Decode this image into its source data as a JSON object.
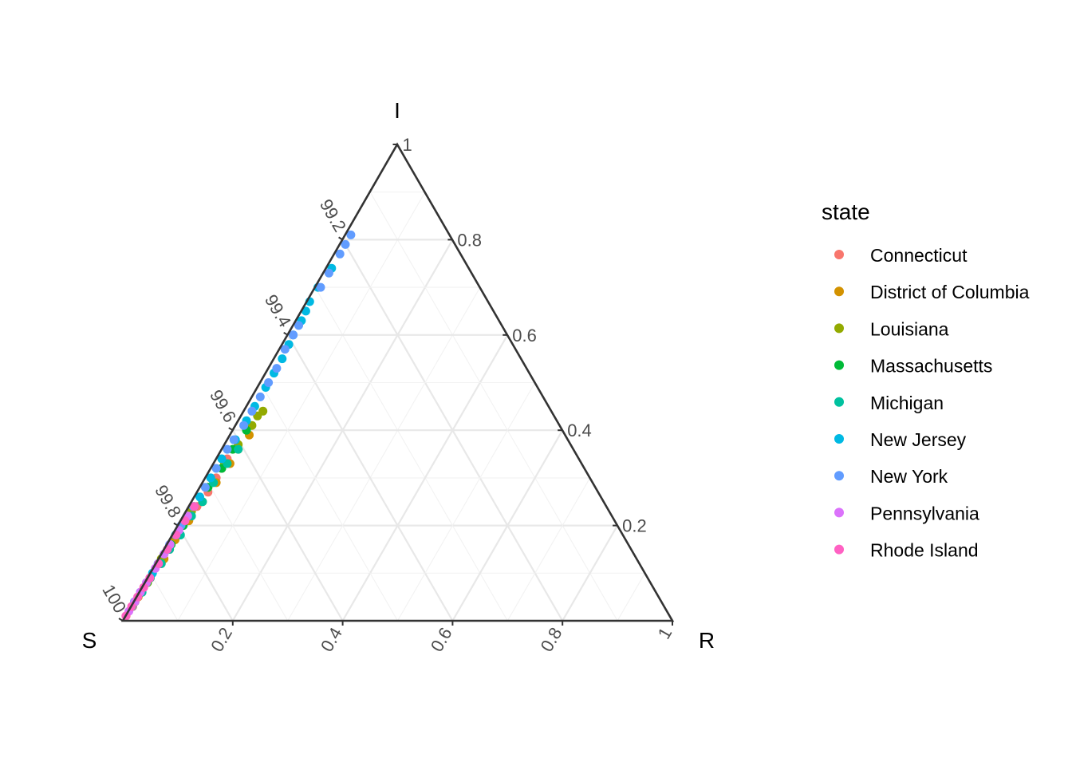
{
  "chart_data": {
    "type": "scatter",
    "subtype": "ternary",
    "vertices": {
      "top": "I",
      "left": "S",
      "right": "R"
    },
    "tick_labels": {
      "I": [
        "0.2",
        "0.4",
        "0.6",
        "0.8",
        "1"
      ],
      "R": [
        "0.2",
        "0.4",
        "0.6",
        "0.8",
        "1"
      ],
      "S": [
        "99.2",
        "99.4",
        "99.6",
        "99.8",
        "100"
      ]
    },
    "grid": true,
    "legend": {
      "title": "state",
      "position": "right",
      "entries": [
        {
          "name": "Connecticut",
          "color": "#F8766D"
        },
        {
          "name": "District of Columbia",
          "color": "#D39200"
        },
        {
          "name": "Louisiana",
          "color": "#93AA00"
        },
        {
          "name": "Massachusetts",
          "color": "#00BA38"
        },
        {
          "name": "Michigan",
          "color": "#00C19F"
        },
        {
          "name": "New Jersey",
          "color": "#00B9E3"
        },
        {
          "name": "New York",
          "color": "#619CFF"
        },
        {
          "name": "Pennsylvania",
          "color": "#DB72FB"
        },
        {
          "name": "Rhode Island",
          "color": "#FF61C3"
        }
      ]
    },
    "series": [
      {
        "name": "Connecticut",
        "points": [
          [
            0.34,
            0.02
          ],
          [
            0.32,
            0.02
          ],
          [
            0.3,
            0.02
          ],
          [
            0.27,
            0.02
          ],
          [
            0.24,
            0.015
          ],
          [
            0.21,
            0.015
          ],
          [
            0.18,
            0.01
          ],
          [
            0.15,
            0.01
          ],
          [
            0.12,
            0.01
          ],
          [
            0.09,
            0.005
          ],
          [
            0.06,
            0.005
          ],
          [
            0.03,
            0.003
          ],
          [
            0.01,
            0.001
          ]
        ]
      },
      {
        "name": "District of Columbia",
        "points": [
          [
            0.39,
            0.035
          ],
          [
            0.36,
            0.03
          ],
          [
            0.33,
            0.03
          ],
          [
            0.29,
            0.025
          ],
          [
            0.25,
            0.02
          ],
          [
            0.21,
            0.015
          ],
          [
            0.17,
            0.01
          ],
          [
            0.13,
            0.01
          ],
          [
            0.09,
            0.005
          ],
          [
            0.05,
            0.003
          ]
        ]
      },
      {
        "name": "Louisiana",
        "points": [
          [
            0.44,
            0.035
          ],
          [
            0.43,
            0.03
          ],
          [
            0.41,
            0.03
          ],
          [
            0.37,
            0.025
          ],
          [
            0.33,
            0.02
          ],
          [
            0.28,
            0.015
          ],
          [
            0.23,
            0.01
          ],
          [
            0.18,
            0.01
          ],
          [
            0.13,
            0.005
          ],
          [
            0.08,
            0.005
          ],
          [
            0.04,
            0.002
          ]
        ]
      },
      {
        "name": "Massachusetts",
        "points": [
          [
            0.4,
            0.025
          ],
          [
            0.36,
            0.02
          ],
          [
            0.32,
            0.02
          ],
          [
            0.28,
            0.015
          ],
          [
            0.24,
            0.01
          ],
          [
            0.2,
            0.01
          ],
          [
            0.16,
            0.008
          ],
          [
            0.12,
            0.006
          ],
          [
            0.08,
            0.004
          ],
          [
            0.04,
            0.002
          ]
        ]
      },
      {
        "name": "Michigan",
        "points": [
          [
            0.36,
            0.03
          ],
          [
            0.33,
            0.025
          ],
          [
            0.29,
            0.02
          ],
          [
            0.25,
            0.02
          ],
          [
            0.22,
            0.015
          ],
          [
            0.18,
            0.015
          ],
          [
            0.15,
            0.01
          ],
          [
            0.12,
            0.01
          ],
          [
            0.09,
            0.005
          ],
          [
            0.06,
            0.005
          ],
          [
            0.03,
            0.002
          ]
        ]
      },
      {
        "name": "New Jersey",
        "points": [
          [
            0.74,
            0.01
          ],
          [
            0.7,
            0.005
          ],
          [
            0.67,
            0.005
          ],
          [
            0.65,
            0.008
          ],
          [
            0.63,
            0.01
          ],
          [
            0.6,
            0.01
          ],
          [
            0.58,
            0.012
          ],
          [
            0.55,
            0.015
          ],
          [
            0.52,
            0.015
          ],
          [
            0.49,
            0.015
          ],
          [
            0.45,
            0.015
          ],
          [
            0.42,
            0.015
          ],
          [
            0.38,
            0.015
          ],
          [
            0.34,
            0.01
          ],
          [
            0.3,
            0.01
          ],
          [
            0.26,
            0.01
          ],
          [
            0.22,
            0.008
          ],
          [
            0.18,
            0.006
          ],
          [
            0.14,
            0.005
          ],
          [
            0.1,
            0.004
          ],
          [
            0.06,
            0.002
          ]
        ]
      },
      {
        "name": "New York",
        "points": [
          [
            0.81,
            0.01
          ],
          [
            0.79,
            0.01
          ],
          [
            0.77,
            0.01
          ],
          [
            0.73,
            0.01
          ],
          [
            0.7,
            0.01
          ],
          [
            0.62,
            0.01
          ],
          [
            0.6,
            0.01
          ],
          [
            0.57,
            0.01
          ],
          [
            0.53,
            0.015
          ],
          [
            0.5,
            0.015
          ],
          [
            0.47,
            0.015
          ],
          [
            0.44,
            0.015
          ],
          [
            0.41,
            0.015
          ],
          [
            0.38,
            0.012
          ],
          [
            0.36,
            0.01
          ],
          [
            0.32,
            0.01
          ],
          [
            0.28,
            0.01
          ],
          [
            0.24,
            0.008
          ],
          [
            0.2,
            0.006
          ],
          [
            0.16,
            0.005
          ],
          [
            0.12,
            0.004
          ],
          [
            0.08,
            0.003
          ],
          [
            0.04,
            0.001
          ]
        ]
      },
      {
        "name": "Pennsylvania",
        "points": [
          [
            0.22,
            0.008
          ],
          [
            0.19,
            0.007
          ],
          [
            0.16,
            0.006
          ],
          [
            0.14,
            0.005
          ],
          [
            0.11,
            0.004
          ],
          [
            0.08,
            0.003
          ],
          [
            0.06,
            0.002
          ],
          [
            0.04,
            0.002
          ],
          [
            0.02,
            0.001
          ]
        ]
      },
      {
        "name": "Rhode Island",
        "points": [
          [
            0.24,
            0.01
          ],
          [
            0.21,
            0.008
          ],
          [
            0.18,
            0.007
          ],
          [
            0.15,
            0.006
          ],
          [
            0.12,
            0.005
          ],
          [
            0.09,
            0.004
          ],
          [
            0.07,
            0.003
          ],
          [
            0.05,
            0.002
          ],
          [
            0.03,
            0.001
          ],
          [
            0.01,
            0.0005
          ]
        ]
      }
    ]
  }
}
